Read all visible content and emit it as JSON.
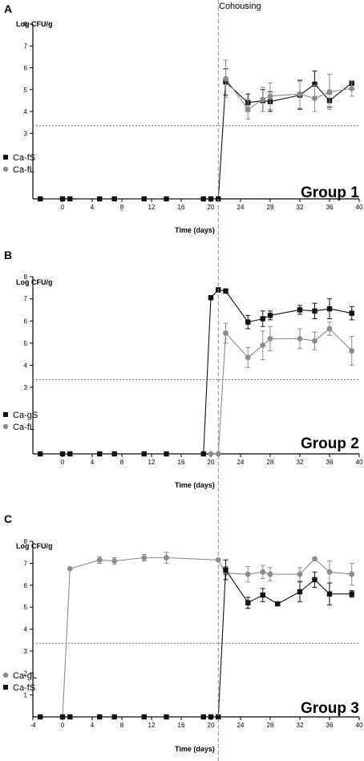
{
  "annotation": {
    "cohousing_label": "Cohousing",
    "cohousing_day": 21
  },
  "colors": {
    "black_series": "#111111",
    "gray_series": "#8c8c8c",
    "threshold": "#777777",
    "cohousing_line": "#888888"
  },
  "chart_data": [
    {
      "panel": "A",
      "type": "line",
      "group_label": "Group 1",
      "ylabel": "Log CFU/g",
      "xlabel": "Time (days)",
      "xlim": [
        -4,
        40
      ],
      "ylim": [
        0,
        8
      ],
      "xticks": [
        0,
        4,
        8,
        12,
        16,
        20,
        24,
        28,
        32,
        36,
        40
      ],
      "xtick_labels": [
        "0",
        "4",
        "8",
        "12",
        "16",
        "20",
        "24",
        "28",
        "32",
        "36",
        "40"
      ],
      "yticks": [
        3,
        4,
        5,
        6,
        7,
        8
      ],
      "ytick_labels": [
        "3",
        "4",
        "5",
        "6",
        "7",
        "8"
      ],
      "threshold": 3.35,
      "legend": [
        "Ca-fS",
        "Ca-fL"
      ],
      "series": [
        {
          "name": "Ca-fS",
          "color": "#111111",
          "marker": "square",
          "x": [
            -3,
            0,
            1,
            5,
            7,
            11,
            14,
            19,
            20,
            21,
            22,
            25,
            27,
            28,
            32,
            34,
            36,
            39
          ],
          "y": [
            0,
            0,
            0,
            0,
            0,
            0,
            0,
            0,
            0,
            0,
            5.35,
            4.4,
            4.5,
            4.45,
            4.75,
            5.25,
            4.5,
            5.3
          ],
          "err": [
            0,
            0,
            0,
            0,
            0,
            0,
            0,
            0,
            0,
            0,
            0.6,
            0.4,
            0.5,
            0.45,
            0.65,
            0.6,
            0.3,
            0.1
          ]
        },
        {
          "name": "Ca-fL",
          "color": "#8c8c8c",
          "marker": "circle",
          "x": [
            22,
            25,
            27,
            28,
            32,
            34,
            36,
            39
          ],
          "y": [
            5.5,
            4.1,
            4.55,
            4.7,
            4.8,
            4.6,
            4.9,
            5.05
          ],
          "err": [
            0.85,
            0.45,
            0.55,
            0.6,
            0.65,
            0.6,
            0.8,
            0.35
          ]
        }
      ]
    },
    {
      "panel": "B",
      "type": "line",
      "group_label": "Group 2",
      "ylabel": "Log CFU/g",
      "xlabel": "Time (days)",
      "xlim": [
        -4,
        40
      ],
      "ylim": [
        0,
        8
      ],
      "xticks": [
        0,
        4,
        8,
        12,
        16,
        20,
        24,
        28,
        32,
        36,
        40
      ],
      "xtick_labels": [
        "0",
        "4",
        "8",
        "12",
        "16",
        "20",
        "24",
        "28",
        "32",
        "36",
        "40"
      ],
      "yticks": [
        3,
        4,
        5,
        6,
        7,
        8
      ],
      "ytick_labels": [
        "3",
        "4",
        "5",
        "6",
        "7",
        "8"
      ],
      "threshold": 3.35,
      "legend": [
        "Ca-gS",
        "Ca-fL"
      ],
      "series": [
        {
          "name": "Ca-gS",
          "color": "#111111",
          "marker": "square",
          "x": [
            -3,
            0,
            1,
            5,
            7,
            11,
            14,
            19,
            20,
            21,
            22,
            25,
            27,
            28,
            32,
            34,
            36,
            39
          ],
          "y": [
            0,
            0,
            0,
            0,
            0,
            0,
            0,
            0,
            7.05,
            7.4,
            7.35,
            5.95,
            6.1,
            6.25,
            6.5,
            6.45,
            6.55,
            6.35
          ],
          "err": [
            0,
            0,
            0,
            0,
            0,
            0,
            0,
            0,
            0.1,
            0.1,
            0.1,
            0.3,
            0.35,
            0.2,
            0.2,
            0.35,
            0.45,
            0.3
          ]
        },
        {
          "name": "Ca-fL",
          "color": "#8c8c8c",
          "marker": "circle",
          "x": [
            20,
            21,
            22,
            25,
            27,
            28,
            32,
            34,
            36,
            39
          ],
          "y": [
            0,
            0,
            5.45,
            4.35,
            4.9,
            5.2,
            5.2,
            5.1,
            5.65,
            4.65
          ],
          "err": [
            0,
            0,
            0.45,
            0.45,
            0.65,
            0.55,
            0.45,
            0.4,
            0.3,
            0.65
          ]
        }
      ]
    },
    {
      "panel": "C",
      "type": "line",
      "group_label": "Group 3",
      "ylabel": "Log CFU/g",
      "xlabel": "Time (days)",
      "xlim": [
        -4,
        40
      ],
      "ylim": [
        0,
        8
      ],
      "xticks": [
        -4,
        0,
        4,
        8,
        12,
        16,
        20,
        24,
        28,
        32,
        36,
        40
      ],
      "xtick_labels": [
        "-4",
        "0",
        "4",
        "8",
        "12",
        "16",
        "20",
        "24",
        "28",
        "32",
        "36",
        "40"
      ],
      "yticks": [
        1,
        2,
        3,
        4,
        5,
        6,
        7,
        8
      ],
      "ytick_labels": [
        "1",
        "2",
        "3",
        "4",
        "5",
        "6",
        "7",
        "8"
      ],
      "threshold": 3.35,
      "legend": [
        "Ca-gL",
        "Ca-fS"
      ],
      "series": [
        {
          "name": "Ca-gL",
          "color": "#8c8c8c",
          "marker": "circle",
          "x": [
            0,
            1,
            5,
            7,
            11,
            14,
            21,
            22,
            25,
            27,
            28,
            32,
            34,
            36,
            39
          ],
          "y": [
            0,
            6.75,
            7.15,
            7.1,
            7.25,
            7.25,
            7.15,
            6.55,
            6.5,
            6.6,
            6.5,
            6.5,
            7.2,
            6.6,
            6.5
          ],
          "err": [
            0,
            0,
            0.15,
            0.15,
            0.15,
            0.25,
            0,
            0.3,
            0.35,
            0.3,
            0.3,
            0.3,
            0,
            0.5,
            0.5
          ]
        },
        {
          "name": "Ca-fS",
          "color": "#111111",
          "marker": "square",
          "x": [
            -3,
            0,
            1,
            5,
            7,
            11,
            14,
            19,
            20,
            21,
            22,
            25,
            27,
            29,
            32,
            34,
            36,
            39
          ],
          "y": [
            0,
            0,
            0,
            0,
            0,
            0,
            0,
            0,
            0,
            0,
            6.7,
            5.2,
            5.55,
            5.15,
            5.7,
            6.25,
            5.6,
            5.6
          ],
          "err": [
            0,
            0,
            0,
            0,
            0,
            0,
            0,
            0,
            0,
            0,
            0.45,
            0.25,
            0.3,
            0,
            0.45,
            0.35,
            0.5,
            0.15
          ]
        }
      ]
    }
  ]
}
